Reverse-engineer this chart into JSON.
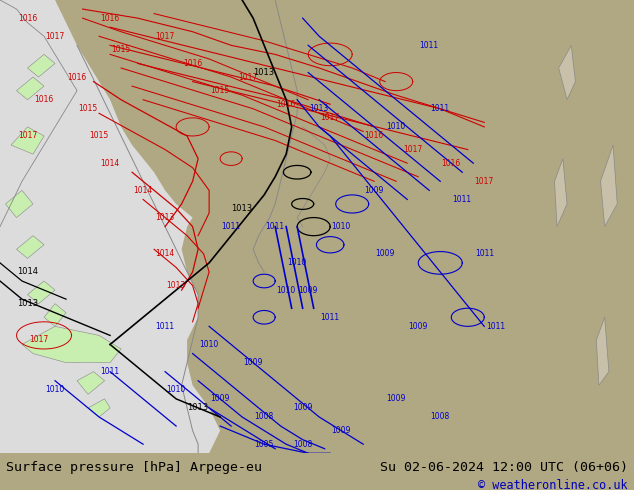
{
  "title_left": "Surface pressure [hPa] Arpege-eu",
  "title_right": "Su 02-06-2024 12:00 UTC (06+06)",
  "copyright": "© weatheronline.co.uk",
  "bg_color": "#b0a882",
  "sea_color": "#dcdcdc",
  "land_green": "#c8eeb0",
  "right_panel_color": "#b8aa88",
  "footer_bg": "#c8c8c8",
  "footer_text_color": "#000000",
  "copyright_color": "#0000bb",
  "title_fontsize": 9.5,
  "copyright_fontsize": 8.5,
  "figsize": [
    6.34,
    4.9
  ],
  "dpi": 100
}
